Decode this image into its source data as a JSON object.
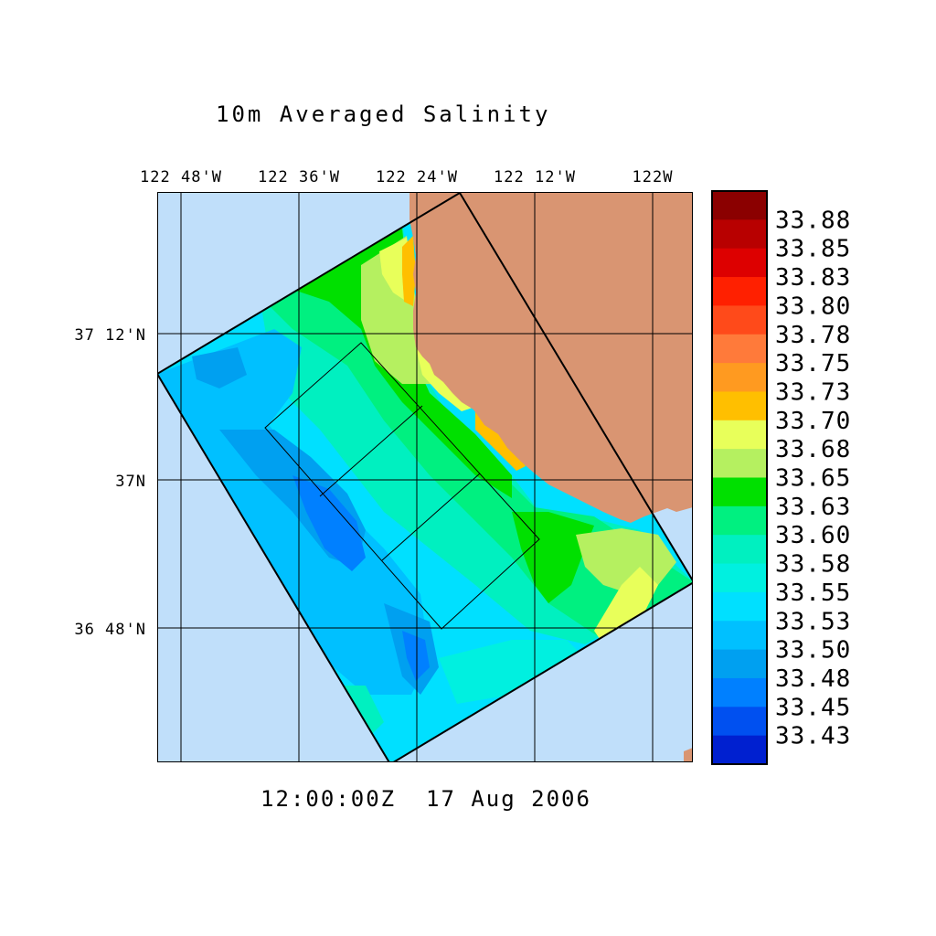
{
  "title": "10m Averaged Salinity",
  "timestamp": "12:00:00Z  17 Aug 2006",
  "lon_ticks": [
    "122 48'W",
    "122 36'W",
    "122 24'W",
    "122 12'W",
    "122W"
  ],
  "lat_ticks": [
    "37 12'N",
    "37N",
    "36 48'N"
  ],
  "colorbar": {
    "levels": [
      "33.88",
      "33.85",
      "33.83",
      "33.80",
      "33.78",
      "33.75",
      "33.73",
      "33.70",
      "33.68",
      "33.65",
      "33.63",
      "33.60",
      "33.58",
      "33.55",
      "33.53",
      "33.50",
      "33.48",
      "33.45",
      "33.43"
    ],
    "colors": [
      "#8b0000",
      "#b80000",
      "#dd0000",
      "#ff2000",
      "#ff4a1a",
      "#ff7a3a",
      "#ff9a20",
      "#ffbf00",
      "#e8ff5a",
      "#b5f060",
      "#00e000",
      "#00f080",
      "#00f0c0",
      "#00f0e0",
      "#00e0ff",
      "#00c0ff",
      "#00a0f0",
      "#0080ff",
      "#0050f0",
      "#0020d0"
    ]
  },
  "map": {
    "ocean_background": "#c0dffa",
    "land_color": "#d99572",
    "grid_color": "#000000"
  }
}
